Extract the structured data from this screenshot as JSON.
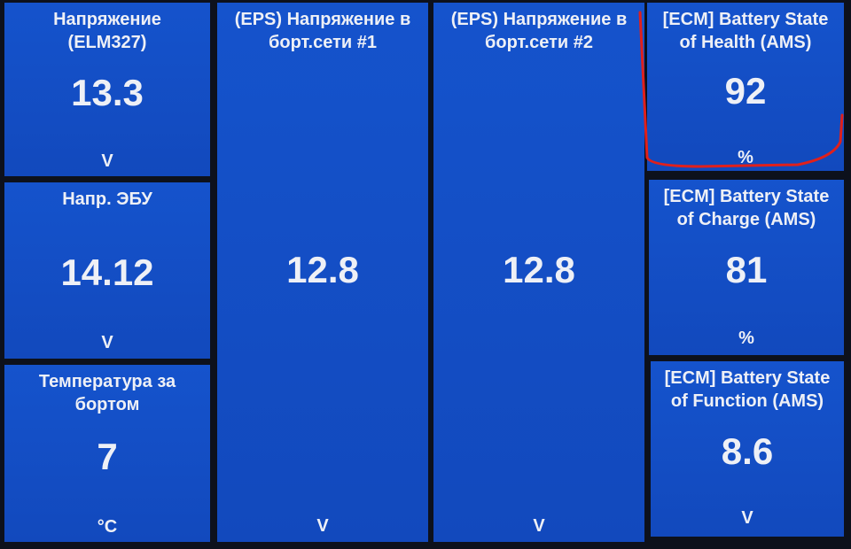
{
  "tiles": [
    {
      "title": "Напряжение\n(ELM327)",
      "value": "13.3",
      "unit": "V"
    },
    {
      "title": "Напр. ЭБУ",
      "value": "14.12",
      "unit": "V"
    },
    {
      "title": "Температура за\nбортом",
      "value": "7",
      "unit": "°C"
    },
    {
      "title": "(EPS) Напряжение в\nборт.сети #1",
      "value": "12.8",
      "unit": "V"
    },
    {
      "title": "(EPS) Напряжение в\nборт.сети #2",
      "value": "12.8",
      "unit": "V"
    },
    {
      "title": "[ECM] Battery State\nof Health (AMS)",
      "value": "92",
      "unit": "%"
    },
    {
      "title": "[ECM] Battery State\nof Charge (AMS)",
      "value": "81",
      "unit": "%"
    },
    {
      "title": "[ECM] Battery State\nof Function (AMS)",
      "value": "8.6",
      "unit": "V"
    }
  ],
  "colors": {
    "tile": "#1450c8",
    "background": "#0d111c",
    "annotation": "#e0201c"
  }
}
